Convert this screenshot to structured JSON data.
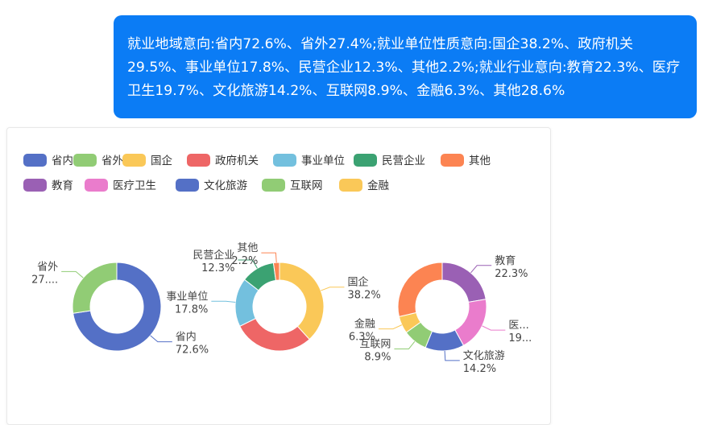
{
  "message": {
    "text": "就业地域意向:省内72.6%、省外27.4%;就业单位性质意向:国企38.2%、政府机关29.5%、事业单位17.8%、民营企业12.3%、其他2.2%;就业行业意向:教育22.3%、医疗卫生19.7%、文化旅游14.2%、互联网8.9%、金融6.3%、其他28.6%"
  },
  "chart_data": [
    {
      "type": "pie",
      "series_name": "就业地域意向",
      "slices": [
        {
          "label": "省内",
          "value": 72.6,
          "display_value": "72.6%",
          "display_label": "省内",
          "color": "#5470c6"
        },
        {
          "label": "省外",
          "value": 27.4,
          "display_value": "27....",
          "display_label": "省外",
          "color": "#91cc75"
        }
      ]
    },
    {
      "type": "pie",
      "series_name": "就业单位性质意向",
      "slices": [
        {
          "label": "国企",
          "value": 38.2,
          "display_value": "38.2%",
          "display_label": "国企",
          "color": "#fac858"
        },
        {
          "label": "政府机关",
          "value": 29.5,
          "display_value": "",
          "display_label": "",
          "color": "#ee6666"
        },
        {
          "label": "事业单位",
          "value": 17.8,
          "display_value": "17.8%",
          "display_label": "事业单位",
          "color": "#73c0de"
        },
        {
          "label": "民营企业",
          "value": 12.3,
          "display_value": "12.3%",
          "display_label": "民营企业",
          "color": "#3ba272"
        },
        {
          "label": "其他",
          "value": 2.2,
          "display_value": "2.2%",
          "display_label": "其他",
          "color": "#fc8452"
        }
      ]
    },
    {
      "type": "pie",
      "series_name": "就业行业意向",
      "slices": [
        {
          "label": "教育",
          "value": 22.3,
          "display_value": "22.3%",
          "display_label": "教育",
          "color": "#9a60b4"
        },
        {
          "label": "医疗卫生",
          "value": 19.7,
          "display_value": "19...",
          "display_label": "医...",
          "color": "#ea7ccc"
        },
        {
          "label": "文化旅游",
          "value": 14.2,
          "display_value": "14.2%",
          "display_label": "文化旅游",
          "color": "#5470c6"
        },
        {
          "label": "互联网",
          "value": 8.9,
          "display_value": "8.9%",
          "display_label": "互联网",
          "color": "#91cc75"
        },
        {
          "label": "金融",
          "value": 6.3,
          "display_value": "6.3%",
          "display_label": "金融",
          "color": "#fac858"
        },
        {
          "label": "其他",
          "value": 28.6,
          "display_value": "",
          "display_label": "",
          "color": "#fc8452"
        }
      ]
    }
  ],
  "legend": {
    "placement": "top-left",
    "items": [
      {
        "label": "省内",
        "color": "#5470c6"
      },
      {
        "label": "省外",
        "color": "#91cc75"
      },
      {
        "label": "国企",
        "color": "#fac858"
      },
      {
        "label": "政府机关",
        "color": "#ee6666"
      },
      {
        "label": "事业单位",
        "color": "#73c0de"
      },
      {
        "label": "民营企业",
        "color": "#3ba272"
      },
      {
        "label": "其他",
        "color": "#fc8452"
      },
      {
        "label": "教育",
        "color": "#9a60b4"
      },
      {
        "label": "医疗卫生",
        "color": "#ea7ccc"
      },
      {
        "label": "文化旅游",
        "color": "#5470c6"
      },
      {
        "label": "互联网",
        "color": "#91cc75"
      },
      {
        "label": "金融",
        "color": "#fac858"
      }
    ]
  }
}
